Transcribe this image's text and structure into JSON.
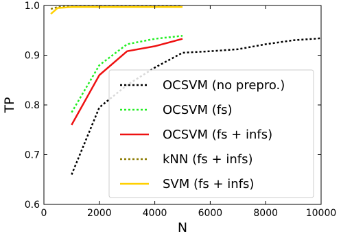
{
  "chart_data": {
    "type": "line",
    "xlabel": "N",
    "ylabel": "TP",
    "xlim": [
      0,
      10000
    ],
    "ylim": [
      0.6,
      1.0
    ],
    "x_ticks": [
      0,
      2000,
      4000,
      6000,
      8000,
      10000
    ],
    "y_ticks": [
      0.6,
      0.7,
      0.8,
      0.9,
      1.0
    ],
    "x_tick_labels": [
      "0",
      "2000",
      "4000",
      "6000",
      "8000",
      "10000"
    ],
    "y_tick_labels": [
      "0.6",
      "0.7",
      "0.8",
      "0.9",
      "1.0"
    ],
    "grid": false,
    "legend_position": "lower-right",
    "series": [
      {
        "name": "OCSVM (no prepro.)",
        "color": "#000000",
        "style": "dotted",
        "x": [
          1000,
          2000,
          3000,
          4000,
          5000,
          6000,
          7000,
          8000,
          9000,
          10000
        ],
        "y": [
          0.66,
          0.795,
          0.84,
          0.875,
          0.905,
          0.908,
          0.912,
          0.922,
          0.93,
          0.934
        ]
      },
      {
        "name": "OCSVM (fs)",
        "color": "#22ee22",
        "style": "dotted",
        "x": [
          1000,
          2000,
          3000,
          4000,
          5000
        ],
        "y": [
          0.785,
          0.88,
          0.922,
          0.933,
          0.939
        ]
      },
      {
        "name": "OCSVM (fs + infs)",
        "color": "#ee1111",
        "style": "solid",
        "x": [
          1000,
          2000,
          3000,
          4000,
          5000
        ],
        "y": [
          0.76,
          0.86,
          0.908,
          0.918,
          0.933
        ]
      },
      {
        "name": "kNN (fs + infs)",
        "color": "#8b7a00",
        "style": "dotted",
        "x": [
          250,
          500,
          1000,
          2000,
          3000,
          4000,
          5000
        ],
        "y": [
          0.993,
          0.997,
          0.998,
          0.998,
          0.998,
          0.998,
          0.998
        ]
      },
      {
        "name": "SVM (fs + infs)",
        "color": "#ffd000",
        "style": "solid",
        "x": [
          250,
          500,
          1000,
          2000,
          3000,
          4000,
          5000
        ],
        "y": [
          0.983,
          0.995,
          0.997,
          0.997,
          0.997,
          0.997,
          0.997
        ]
      }
    ]
  }
}
